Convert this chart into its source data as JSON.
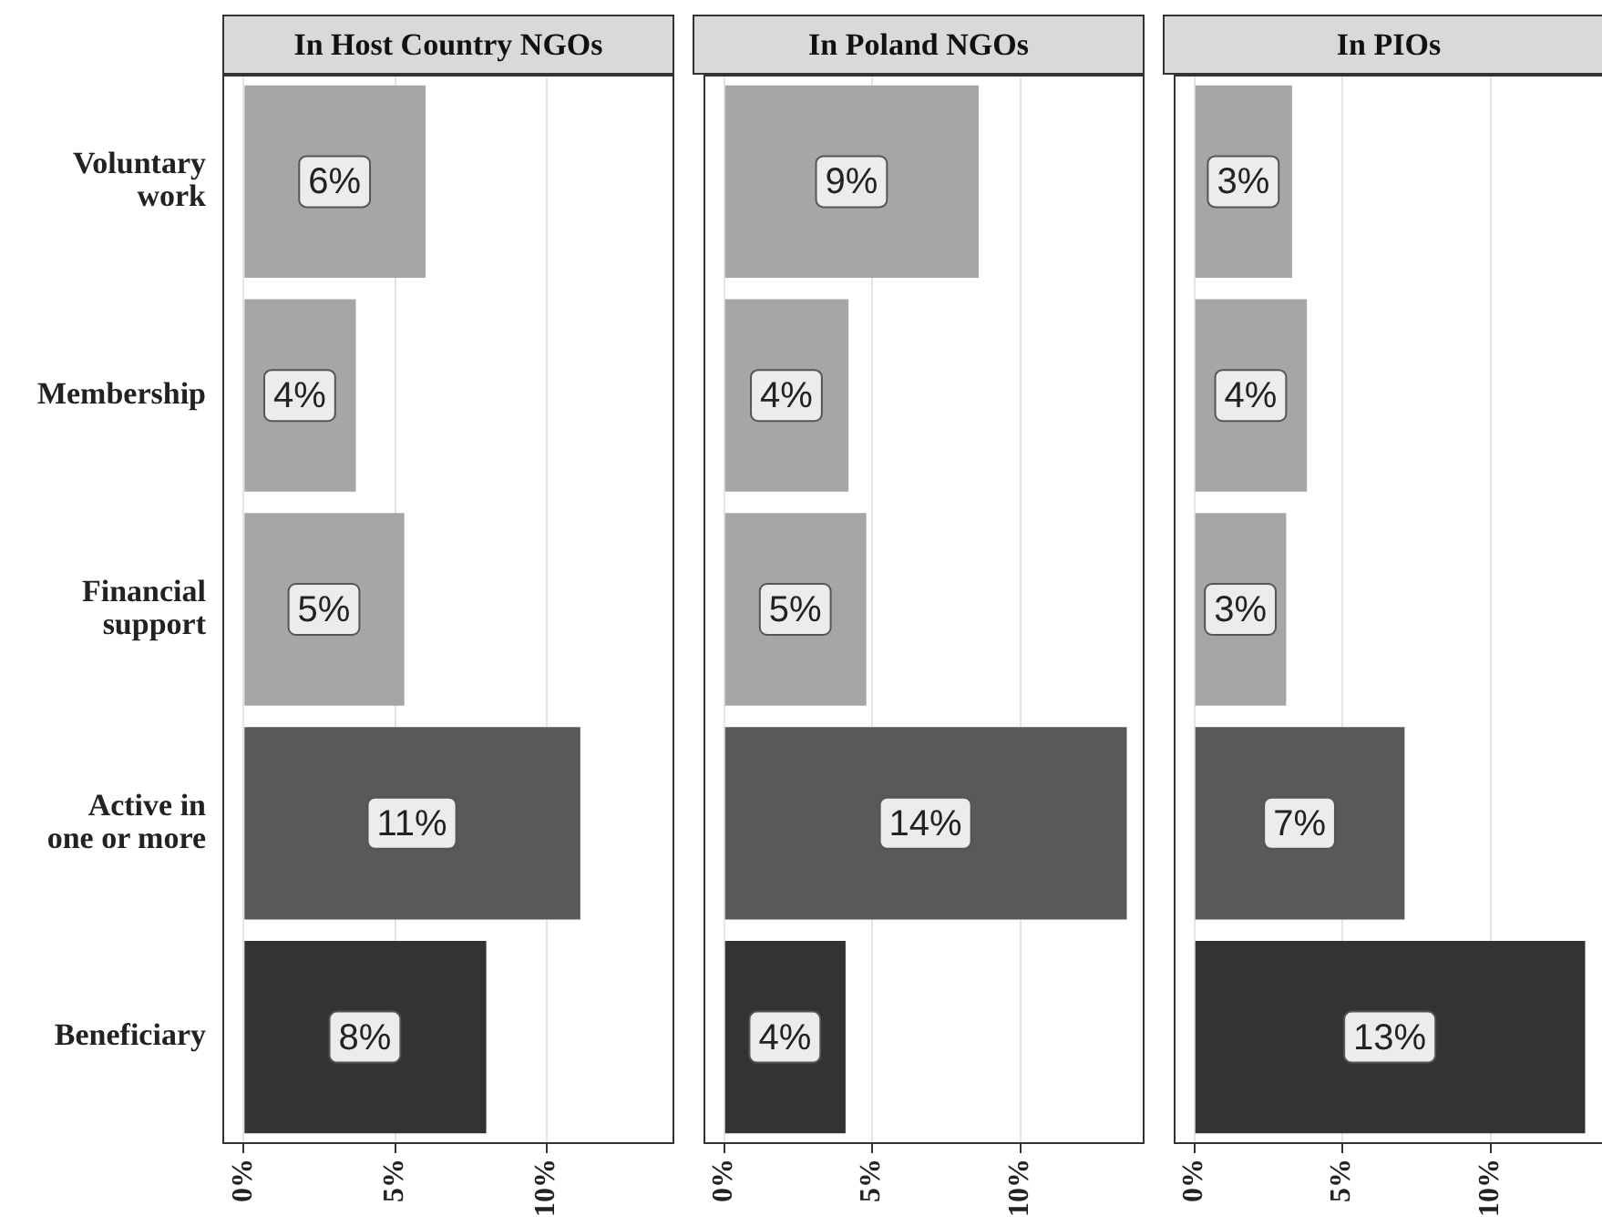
{
  "chart_data": [
    {
      "type": "bar",
      "orientation": "horizontal",
      "title": "In Host Country NGOs",
      "categories": [
        "Voluntary\nwork",
        "Membership",
        "Financial\nsupport",
        "Active in\none or more",
        "Beneficiary"
      ],
      "values": [
        6.0,
        3.7,
        5.3,
        11.1,
        8.0
      ],
      "colors": [
        "#a6a6a6",
        "#a6a6a6",
        "#a6a6a6",
        "#595959",
        "#333333"
      ],
      "value_labels": [
        "6%",
        "4%",
        "5%",
        "11%",
        "8%"
      ],
      "xlim": [
        -0.7,
        14.2
      ],
      "xticks": [
        {
          "value": 0,
          "label": "0%"
        },
        {
          "value": 5,
          "label": "5%"
        },
        {
          "value": 10,
          "label": "10%"
        }
      ],
      "grid": true
    },
    {
      "type": "bar",
      "orientation": "horizontal",
      "title": "In Poland NGOs",
      "categories": [
        null,
        null,
        null,
        null,
        null
      ],
      "values": [
        8.6,
        4.2,
        4.8,
        13.6,
        4.1
      ],
      "colors": [
        "#a6a6a6",
        "#a6a6a6",
        "#a6a6a6",
        "#595959",
        "#333333"
      ],
      "value_labels": [
        "9%",
        "4%",
        "5%",
        "14%",
        "4%"
      ],
      "xlim": [
        -0.7,
        14.2
      ],
      "xticks": [
        {
          "value": 0,
          "label": "0%"
        },
        {
          "value": 5,
          "label": "5%"
        },
        {
          "value": 10,
          "label": "10%"
        }
      ],
      "grid": true,
      "tick_labels": "x"
    },
    {
      "type": "bar",
      "orientation": "horizontal",
      "title": "In PIOs",
      "categories": [
        null,
        null,
        null,
        null,
        null
      ],
      "values": [
        3.3,
        3.8,
        3.1,
        7.1,
        13.2
      ],
      "colors": [
        "#a6a6a6",
        "#a6a6a6",
        "#a6a6a6",
        "#595959",
        "#333333"
      ],
      "value_labels": [
        "3%",
        "4%",
        "3%",
        "7%",
        "13%"
      ],
      "xlim": [
        -0.7,
        14.2
      ],
      "xticks": [
        {
          "value": 0,
          "label": "0%"
        },
        {
          "value": 5,
          "label": "5%"
        },
        {
          "value": 10,
          "label": "10%"
        }
      ],
      "grid": true,
      "tick_labels": "x"
    }
  ]
}
